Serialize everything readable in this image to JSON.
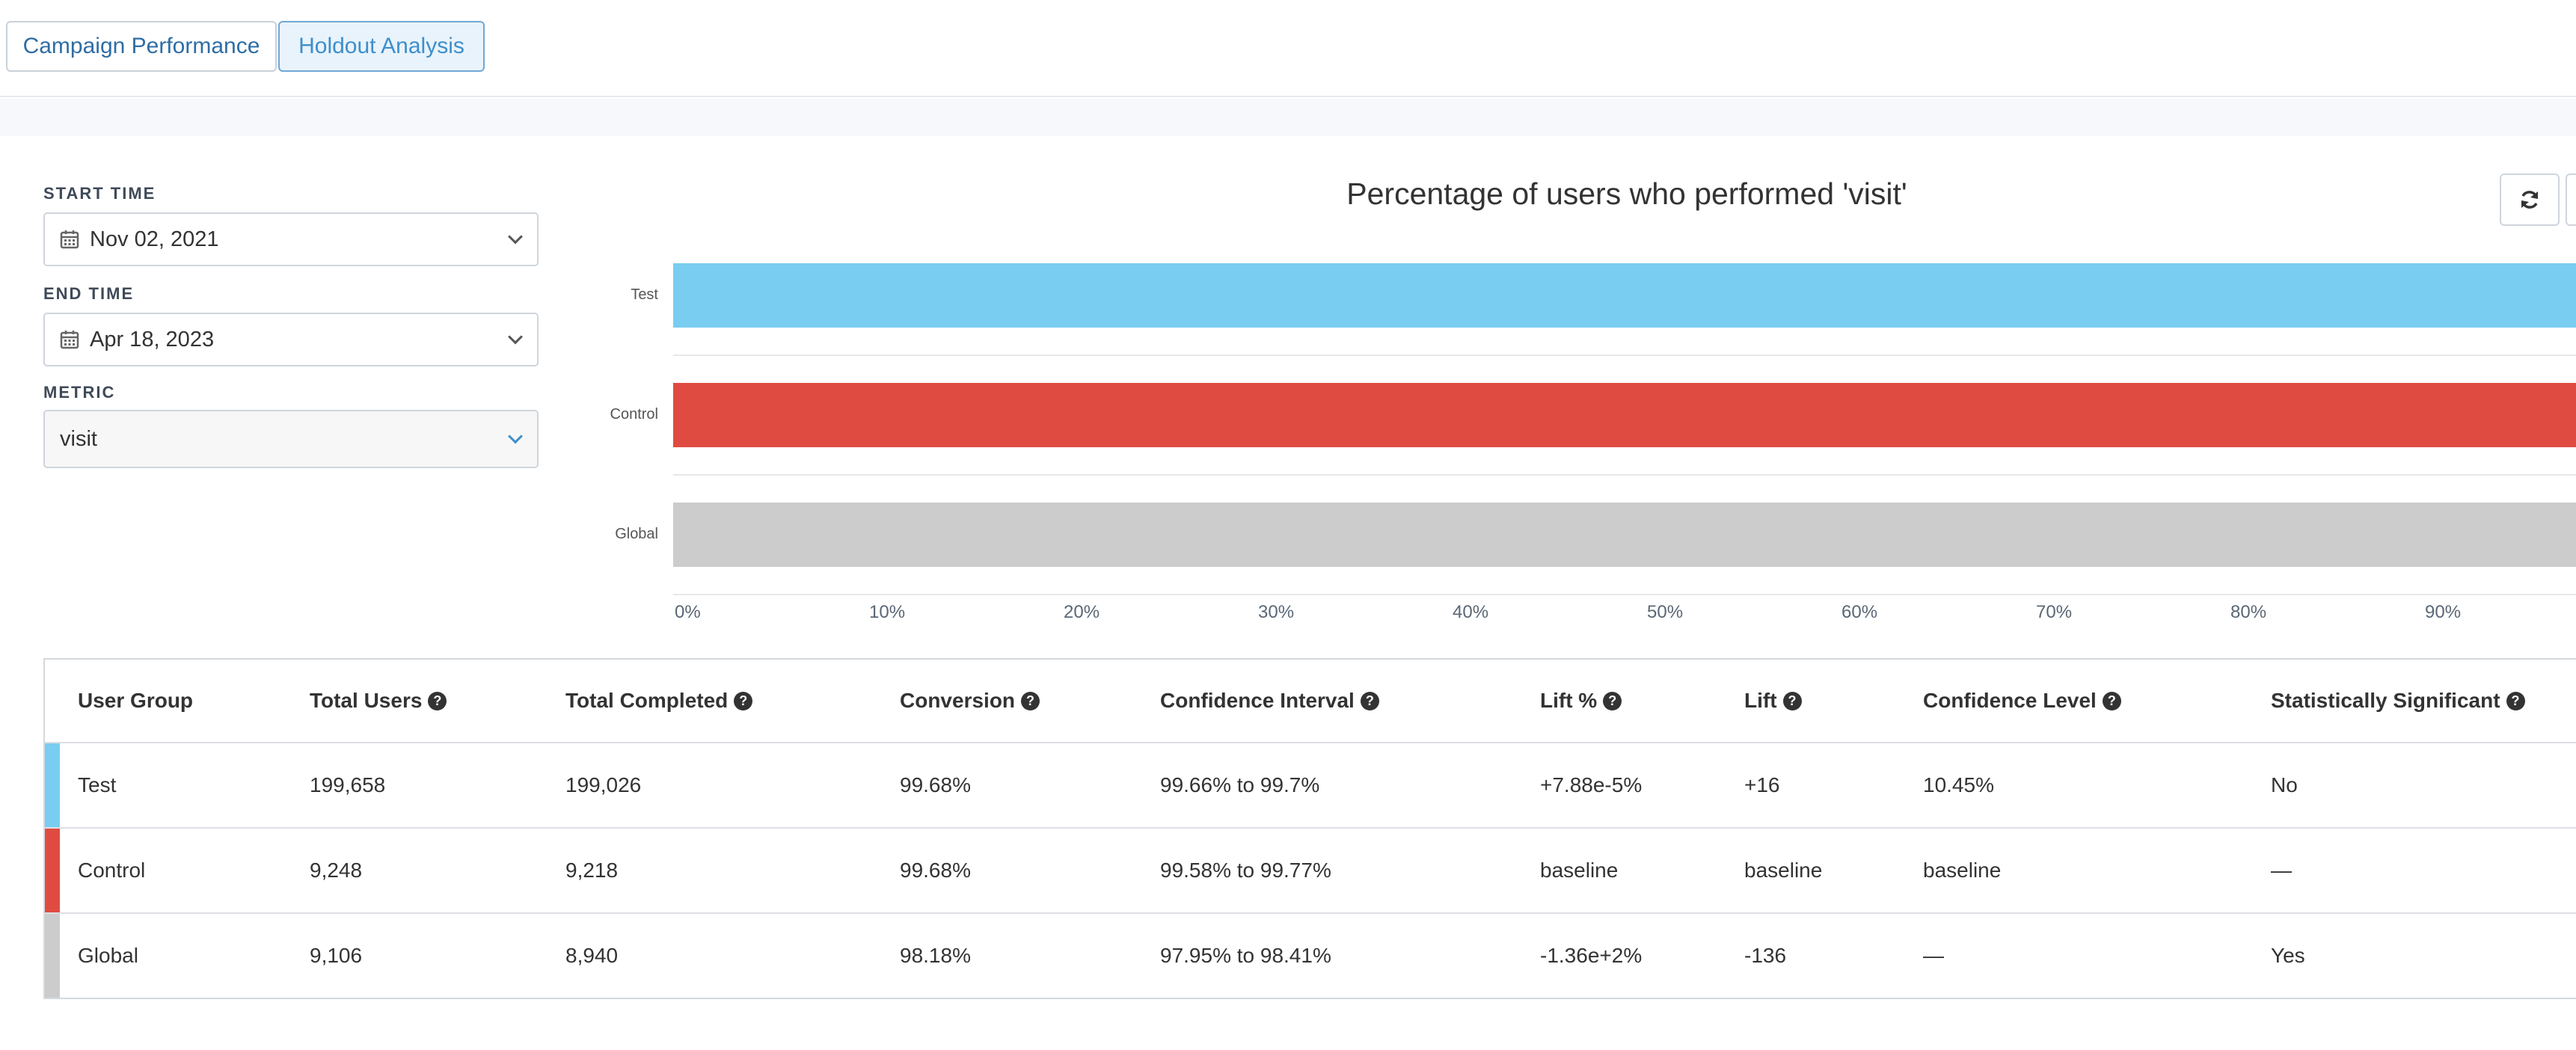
{
  "tabs": [
    {
      "label": "Campaign Performance",
      "active": false
    },
    {
      "label": "Holdout Analysis",
      "active": true
    }
  ],
  "filters": {
    "start_time": {
      "label": "START TIME",
      "value": "Nov 02, 2021",
      "icon": "calendar-icon"
    },
    "end_time": {
      "label": "END TIME",
      "value": "Apr 18, 2023",
      "icon": "calendar-icon"
    },
    "metric": {
      "label": "METRIC",
      "value": "visit"
    }
  },
  "toolbar": {
    "refresh_icon": "refresh-icon"
  },
  "chart_data": {
    "type": "bar",
    "orientation": "horizontal",
    "title": "Percentage of users who performed 'visit'",
    "categories": [
      "Test",
      "Control",
      "Global"
    ],
    "values": [
      99.68,
      99.68,
      98.18
    ],
    "colors": [
      "#79cdf0",
      "#e04b41",
      "#cccccc"
    ],
    "xlim": [
      0,
      100
    ],
    "x_ticks": [
      "0%",
      "10%",
      "20%",
      "30%",
      "40%",
      "50%",
      "60%",
      "70%",
      "80%",
      "90%"
    ],
    "xlabel": "",
    "ylabel": "",
    "grid": true
  },
  "table": {
    "columns": [
      {
        "label": "User Group",
        "help": false
      },
      {
        "label": "Total Users",
        "help": true
      },
      {
        "label": "Total Completed",
        "help": true
      },
      {
        "label": "Conversion",
        "help": true
      },
      {
        "label": "Confidence Interval",
        "help": true
      },
      {
        "label": "Lift %",
        "help": true
      },
      {
        "label": "Lift",
        "help": true
      },
      {
        "label": "Confidence Level",
        "help": true
      },
      {
        "label": "Statistically Significant",
        "help": true
      }
    ],
    "rows": [
      {
        "color": "#79cdf0",
        "cells": [
          "Test",
          "199,658",
          "199,026",
          "99.68%",
          "99.66% to 99.7%",
          "+7.88e-5%",
          "+16",
          "10.45%",
          "No"
        ]
      },
      {
        "color": "#e04b41",
        "cells": [
          "Control",
          "9,248",
          "9,218",
          "99.68%",
          "99.58% to 99.77%",
          "baseline",
          "baseline",
          "baseline",
          "—"
        ]
      },
      {
        "color": "#cccccc",
        "cells": [
          "Global",
          "9,106",
          "8,940",
          "98.18%",
          "97.95% to 98.41%",
          "-1.36e+2%",
          "-136",
          "—",
          "Yes"
        ]
      }
    ]
  }
}
